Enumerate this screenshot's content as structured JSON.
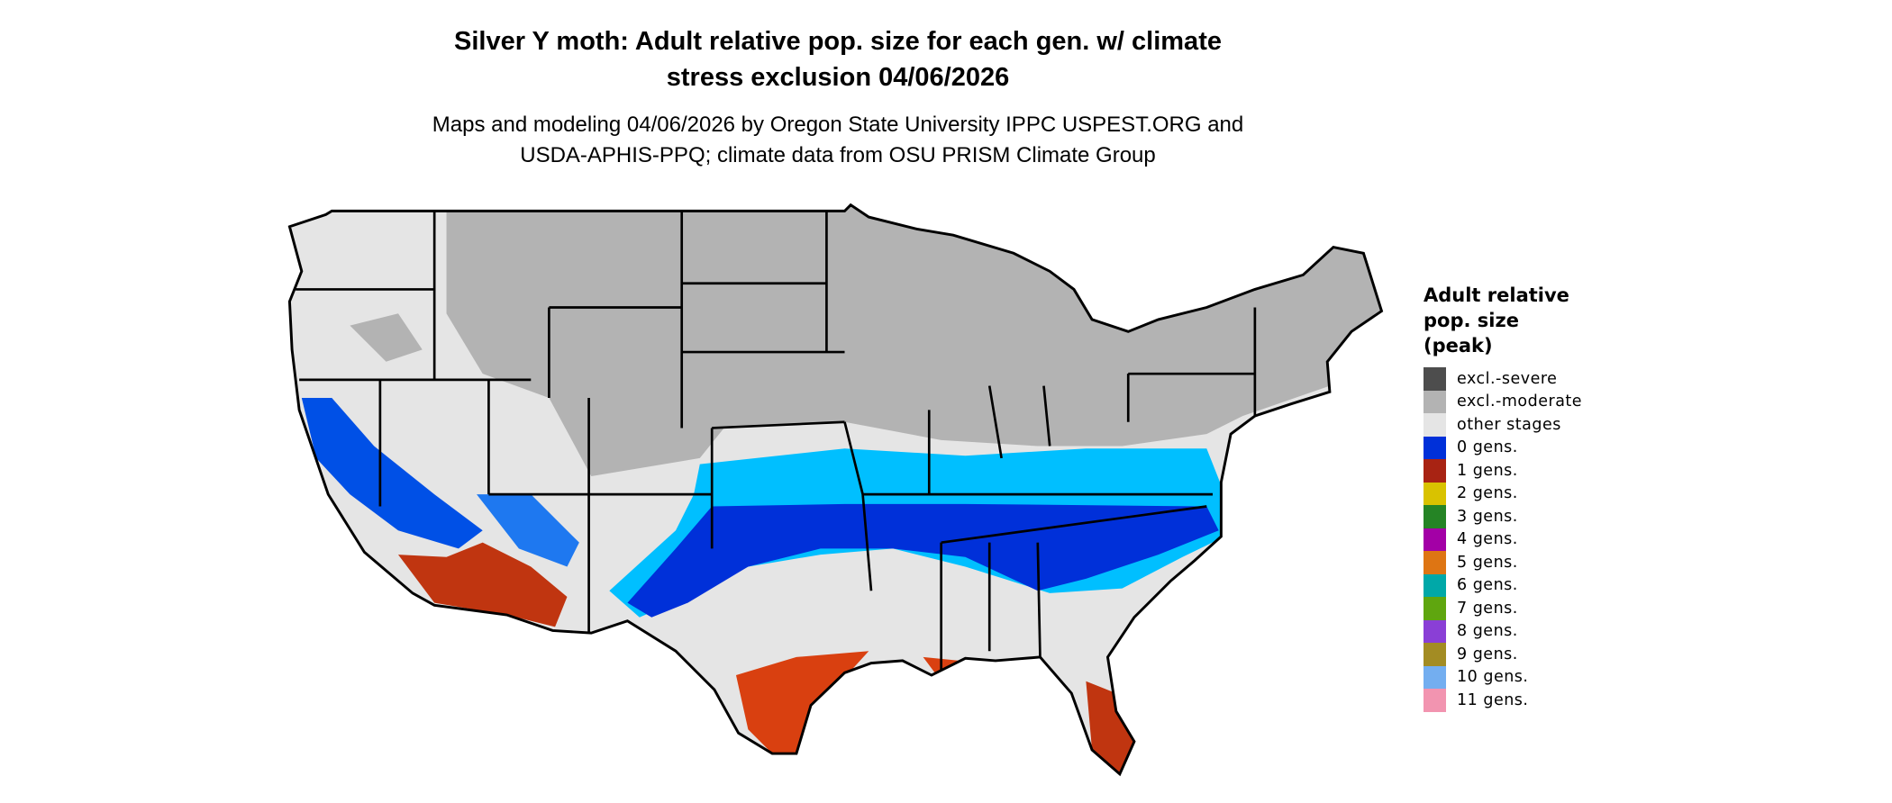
{
  "title": {
    "line1": "Silver Y moth: Adult relative pop. size for each gen. w/ climate",
    "line2": "stress exclusion 04/06/2026"
  },
  "subtitle": {
    "line1": "Maps and modeling 04/06/2026 by Oregon State University IPPC USPEST.ORG and",
    "line2": "USDA-APHIS-PPQ; climate data from OSU PRISM Climate Group"
  },
  "legend": {
    "title_lines": [
      "Adult relative",
      "pop. size",
      "(peak)"
    ],
    "items": [
      {
        "label": "excl.-severe",
        "color": "#4d4d4d"
      },
      {
        "label": "excl.-moderate",
        "color": "#b3b3b3"
      },
      {
        "label": "other stages",
        "color": "#e5e5e5"
      },
      {
        "label": "0 gens.",
        "color": "#0030d9"
      },
      {
        "label": "1 gens.",
        "color": "#a82313"
      },
      {
        "label": "2 gens.",
        "color": "#d9c200"
      },
      {
        "label": "3 gens.",
        "color": "#258425"
      },
      {
        "label": "4 gens.",
        "color": "#a300a6"
      },
      {
        "label": "5 gens.",
        "color": "#de7513"
      },
      {
        "label": "6 gens.",
        "color": "#00a8a8"
      },
      {
        "label": "7 gens.",
        "color": "#5fa60f"
      },
      {
        "label": "8 gens.",
        "color": "#8a3fd6"
      },
      {
        "label": "9 gens.",
        "color": "#a38c23"
      },
      {
        "label": "10 gens.",
        "color": "#73aef0"
      },
      {
        "label": "11 gens.",
        "color": "#f294b0"
      }
    ]
  },
  "map_colors": {
    "low_relative_blue": "#00bfff",
    "high_relative_red": "#d94010"
  }
}
